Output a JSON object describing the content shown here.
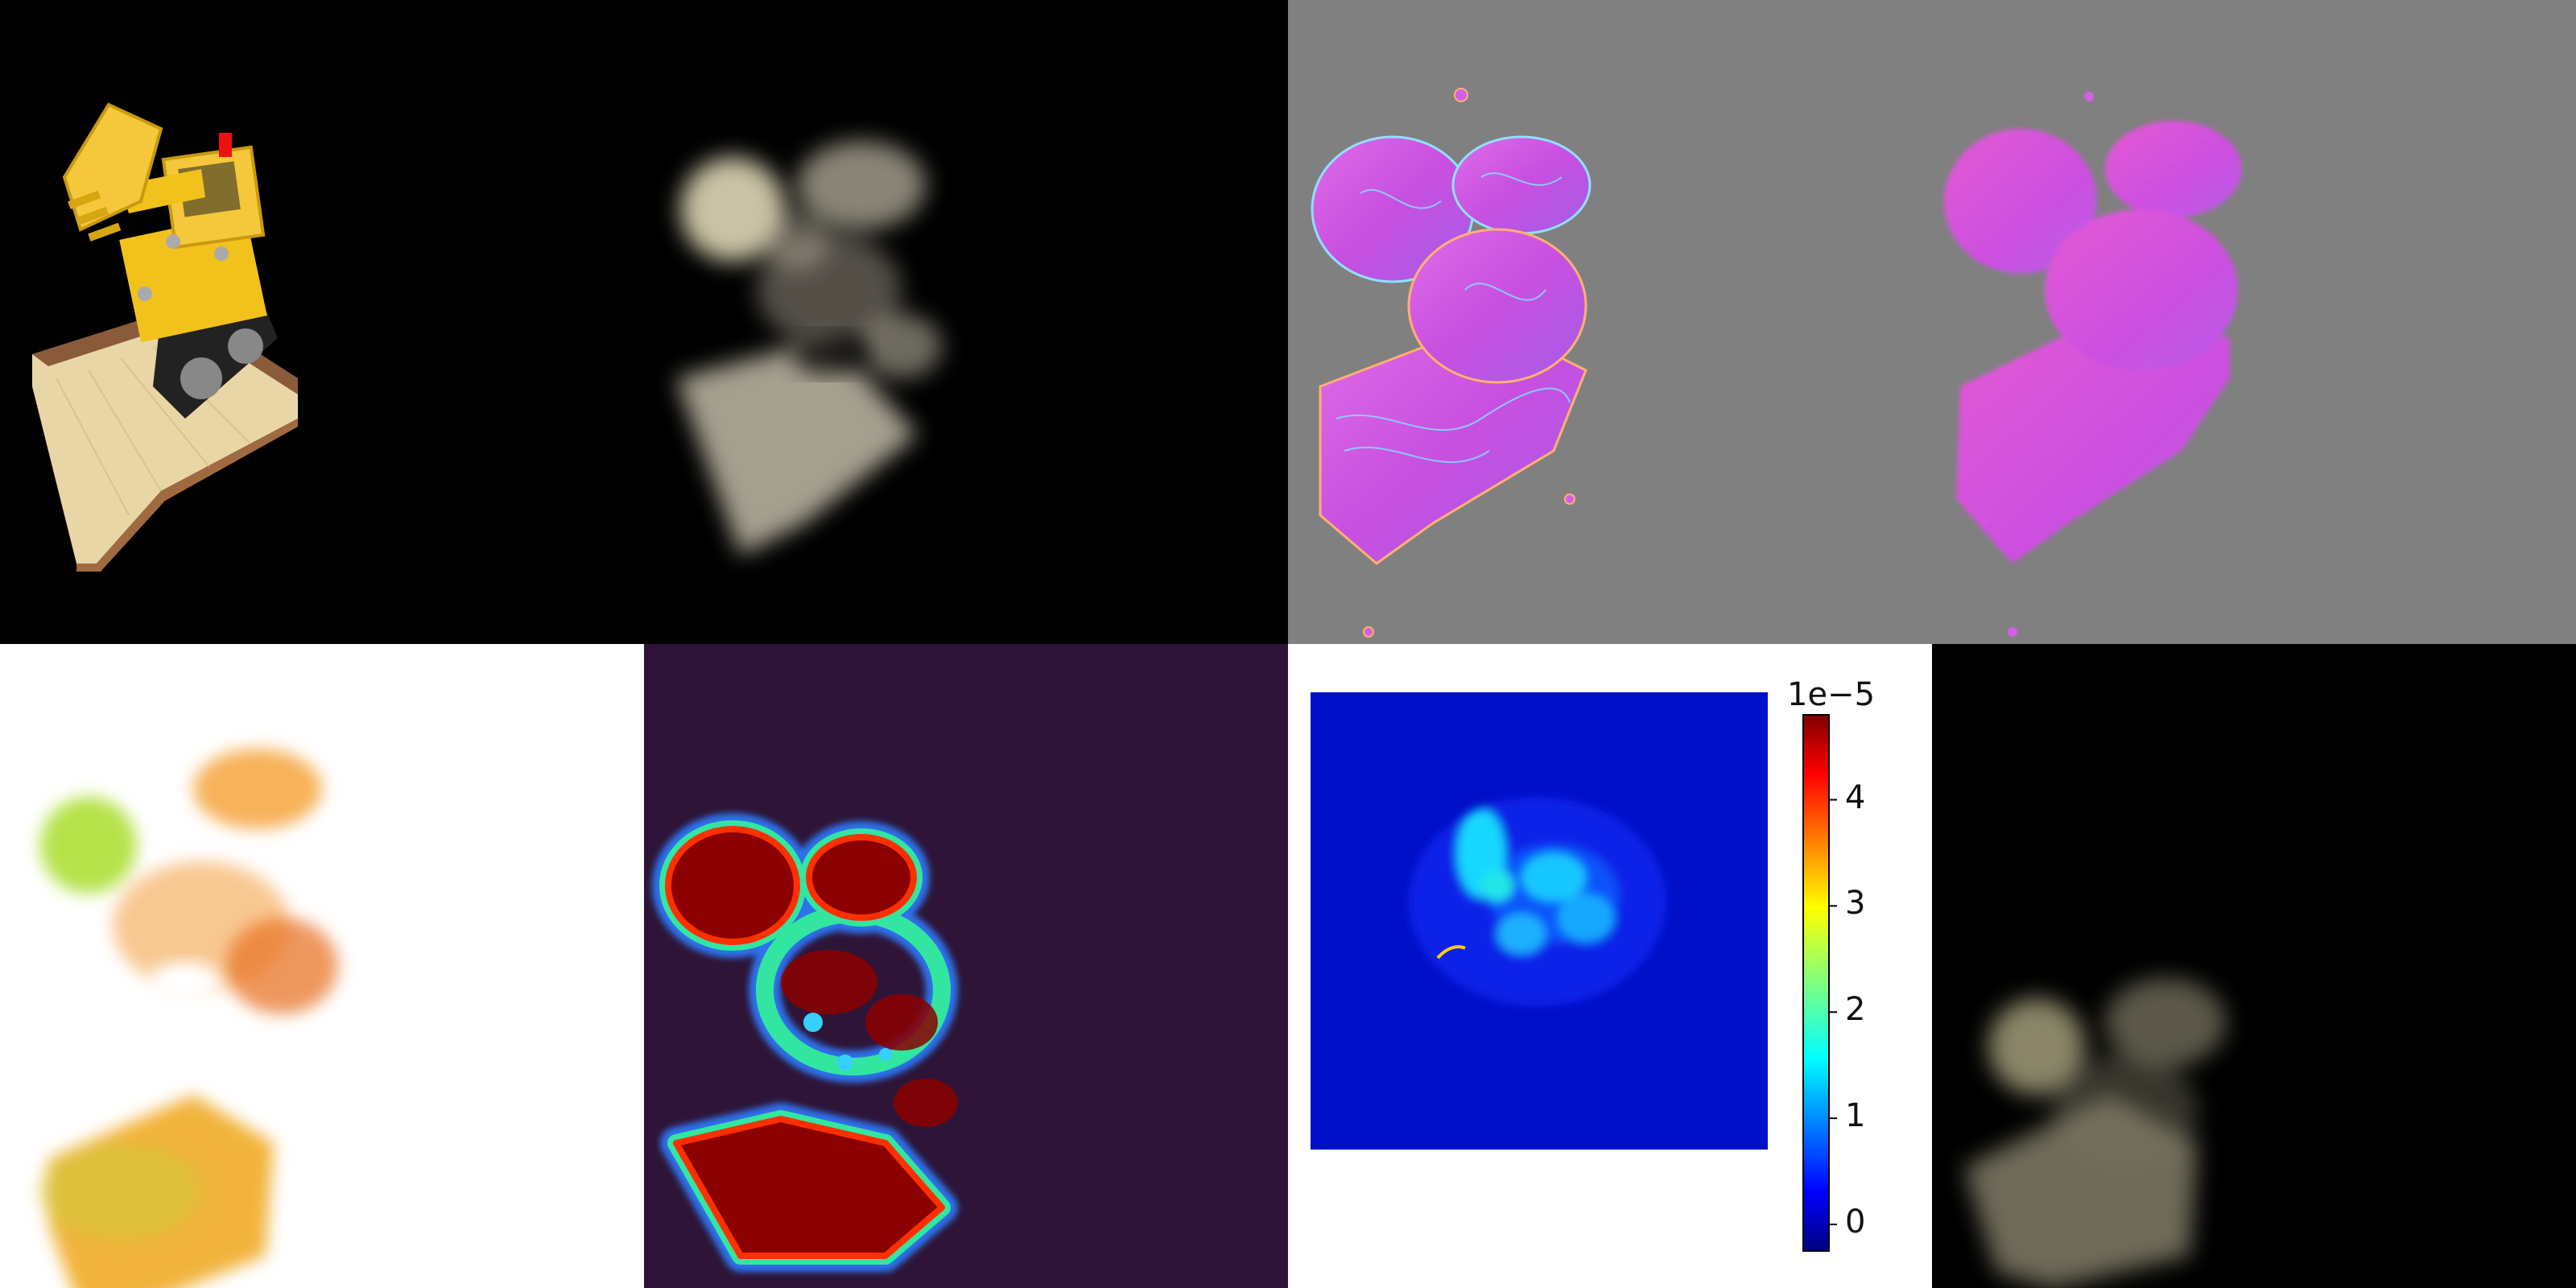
{
  "panels": [
    {
      "id": "lego-render",
      "background": "#000000"
    },
    {
      "id": "blurry-reconstruction",
      "background": "#000000"
    },
    {
      "id": "normal-map-detailed",
      "background": "#808080"
    },
    {
      "id": "normal-map-smooth",
      "background": "#808080"
    },
    {
      "id": "color-blob-render",
      "background": "#ffffff"
    },
    {
      "id": "heatmap-opacity",
      "background": "#2e1537"
    },
    {
      "id": "error-heatmap",
      "background": "#ffffff"
    },
    {
      "id": "dim-reconstruction",
      "background": "#000000"
    }
  ],
  "colorbar": {
    "exponent_label": "1e−5",
    "ticks": [
      "0",
      "1",
      "2",
      "3",
      "4"
    ],
    "tick_values": [
      0,
      1,
      2,
      3,
      4
    ],
    "range": [
      -0.25,
      4.8
    ],
    "colormap": "jet"
  }
}
